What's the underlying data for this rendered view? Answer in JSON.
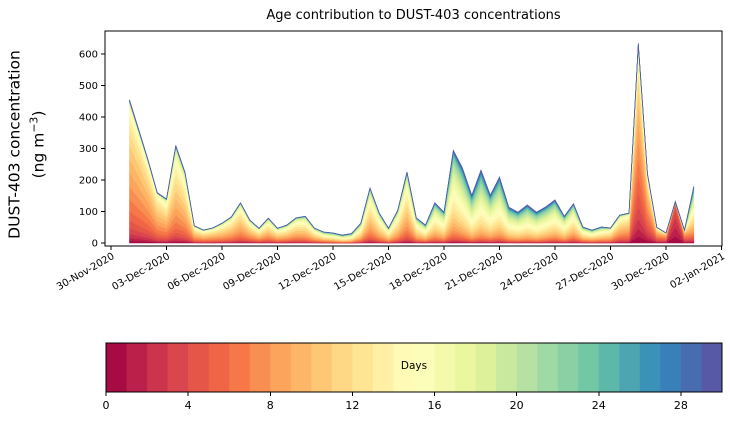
{
  "chart_data": {
    "type": "area",
    "variant": "stacked-age-spectrum",
    "title": "Age contribution to DUST-403 concentrations",
    "ylabel_line1": "DUST-403 concentration",
    "ylabel_unit_prefix": "(ng m",
    "ylabel_unit_sup": "−3",
    "ylabel_unit_suffix": ")",
    "grid": false,
    "x_tick_labels": [
      "30-Nov-2020",
      "03-Dec-2020",
      "06-Dec-2020",
      "09-Dec-2020",
      "12-Dec-2020",
      "15-Dec-2020",
      "18-Dec-2020",
      "21-Dec-2020",
      "24-Dec-2020",
      "27-Dec-2020",
      "30-Dec-2020",
      "02-Jan-2021"
    ],
    "x_tick_days": [
      0,
      3,
      6,
      9,
      12,
      15,
      18,
      21,
      24,
      27,
      30,
      33
    ],
    "y_ticks": [
      0,
      100,
      200,
      300,
      400,
      500,
      600
    ],
    "ylim": [
      -10,
      676
    ],
    "xlim_days": [
      -0.35,
      33.05
    ],
    "series_start": "01-Dec-2020 00:00",
    "start_day": 1.0,
    "sample_step_days": 0.5,
    "age_bins": 30,
    "totals_ng_m3": [
      455,
      360,
      265,
      160,
      140,
      310,
      225,
      55,
      41,
      48,
      63,
      83,
      128,
      73,
      47,
      79,
      47,
      57,
      80,
      85,
      47,
      35,
      32,
      25,
      30,
      63,
      175,
      95,
      47,
      105,
      226,
      80,
      57,
      128,
      98,
      295,
      238,
      152,
      232,
      152,
      210,
      114,
      98,
      121,
      98,
      115,
      137,
      85,
      125,
      51,
      41,
      51,
      48,
      89,
      95,
      635,
      220,
      50,
      32,
      133,
      41,
      180
    ],
    "mean_age_days": [
      8.5,
      8.5,
      8.5,
      9,
      9.5,
      10,
      10,
      9.5,
      9.5,
      9.5,
      10,
      10,
      10,
      10,
      10,
      10.5,
      10.5,
      10.5,
      10.5,
      11,
      11,
      12,
      12.5,
      13,
      13,
      12,
      11,
      11.5,
      12,
      11.5,
      11,
      12,
      12.5,
      13,
      13.5,
      14,
      15,
      15.5,
      15.5,
      15,
      15,
      15,
      15,
      15,
      15,
      14.5,
      14,
      13.5,
      12.5,
      12,
      12,
      12,
      10.5,
      9.5,
      9,
      7,
      7,
      7,
      6,
      1.8,
      6,
      13
    ],
    "age_spread_days": [
      4,
      4,
      4,
      4,
      4.5,
      4.5,
      4.5,
      4.5,
      4.5,
      4.5,
      4.5,
      4.5,
      4.5,
      5,
      5,
      5,
      5,
      5,
      5,
      5,
      5,
      6,
      6,
      6,
      6,
      5.5,
      5,
      5,
      5,
      5,
      5,
      5.5,
      6,
      6,
      6,
      6,
      6.5,
      6.5,
      6.5,
      6.5,
      6.5,
      6.5,
      6.5,
      6.5,
      6.5,
      6.5,
      6.5,
      6,
      6,
      6,
      6,
      6,
      5,
      5,
      4.5,
      4.5,
      4.5,
      4.5,
      4,
      1.8,
      4,
      7
    ],
    "colormap": "Spectral",
    "colormap_stops": [
      "#9e0142",
      "#d53e4f",
      "#f46d43",
      "#fdae61",
      "#fee08b",
      "#ffffbf",
      "#e6f598",
      "#abdda4",
      "#66c2a5",
      "#3288bd",
      "#5e4fa2"
    ],
    "colorbar": {
      "label": "Days",
      "ticks": [
        0,
        4,
        8,
        12,
        16,
        20,
        24,
        28
      ],
      "vmin": 0,
      "vmax": 30,
      "n_segments": 30
    },
    "text_color": "#000000",
    "spine_color": "#000000",
    "background": "#ffffff"
  }
}
